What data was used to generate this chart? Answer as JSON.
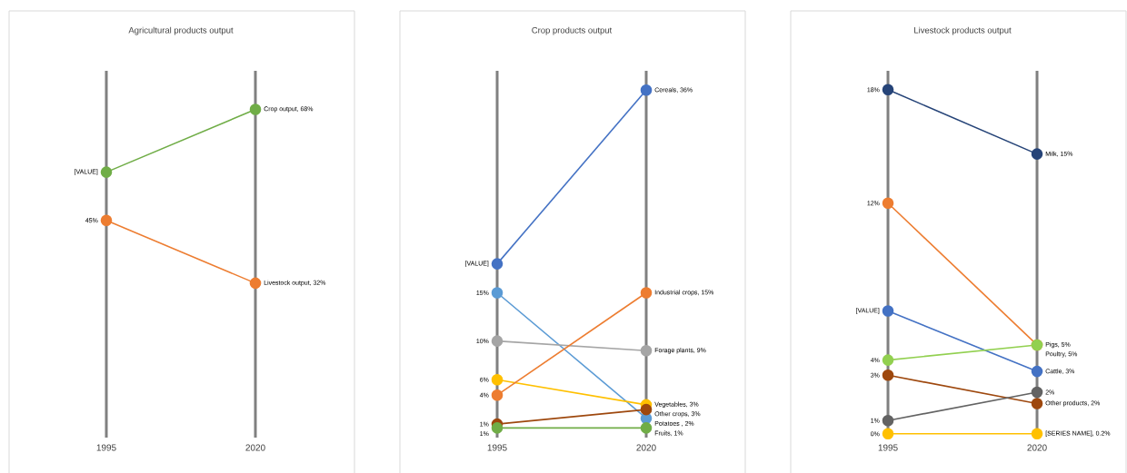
{
  "chart_data": [
    {
      "type": "line",
      "title": "Agricultural products output",
      "categories": [
        "1995",
        "2020"
      ],
      "ylim": [
        0,
        76
      ],
      "grid": "x",
      "tick_labels": "x",
      "marker": "circle",
      "series": [
        {
          "color": "#70ad47",
          "values": [
            55,
            68
          ],
          "value_labels": [
            "[VALUE]",
            "Crop output, 68%"
          ]
        },
        {
          "color": "#ed7d31",
          "values": [
            45,
            32
          ],
          "value_labels": [
            "45%",
            "Livestock output, 32%"
          ]
        }
      ]
    },
    {
      "type": "line",
      "title": "Crop products output",
      "categories": [
        "1995",
        "2020"
      ],
      "ylim": [
        0,
        38
      ],
      "grid": "x",
      "tick_labels": "x",
      "marker": "circle",
      "series": [
        {
          "color": "#4472c4",
          "values": [
            18,
            36
          ],
          "value_labels": [
            "[VALUE]",
            "Cereals, 36%"
          ]
        },
        {
          "color": "#5b9bd5",
          "values": [
            15,
            2
          ],
          "value_labels": [
            "15%",
            "Potatoes , 2%"
          ]
        },
        {
          "color": "#a5a5a5",
          "values": [
            10,
            9
          ],
          "value_labels": [
            "10%",
            "Forage plants, 9%"
          ]
        },
        {
          "color": "#ffc000",
          "values": [
            6,
            3.4
          ],
          "value_labels": [
            "6%",
            "Vegetables, 3%"
          ]
        },
        {
          "color": "#ed7d31",
          "values": [
            4.4,
            15
          ],
          "value_labels": [
            "4%",
            "Industrial crops, 15%"
          ]
        },
        {
          "color": "#9e480e",
          "values": [
            1.4,
            2.9
          ],
          "value_labels": [
            "1%",
            "Other crops, 3%"
          ]
        },
        {
          "color": "#70ad47",
          "values": [
            1,
            1
          ],
          "value_labels": [
            "1%",
            "Fruits, 1%"
          ]
        }
      ]
    },
    {
      "type": "line",
      "title": "Livestock products output",
      "categories": [
        "1995",
        "2020"
      ],
      "ylim": [
        0,
        19.4
      ],
      "grid": "x",
      "tick_labels": "x",
      "marker": "circle",
      "series": [
        {
          "color": "#264478",
          "values": [
            18.4,
            15
          ],
          "value_labels": [
            "18%",
            "Milk, 15%"
          ]
        },
        {
          "color": "#ed7d31",
          "values": [
            12.4,
            4.9
          ],
          "value_labels": [
            "12%",
            "Pigs, 5%"
          ]
        },
        {
          "color": "#4472c4",
          "values": [
            6.7,
            3.5
          ],
          "value_labels": [
            "[VALUE]",
            "Cattle, 3%"
          ]
        },
        {
          "color": "#92d050",
          "values": [
            4.1,
            4.9
          ],
          "value_labels": [
            "4%",
            "Poultry, 5%"
          ]
        },
        {
          "color": "#9e480e",
          "values": [
            3.3,
            1.8
          ],
          "value_labels": [
            "3%",
            "Other products, 2%"
          ]
        },
        {
          "color": "#636363",
          "values": [
            0.9,
            2.4
          ],
          "value_labels": [
            "1%",
            "2%"
          ]
        },
        {
          "color": "#ffc000",
          "values": [
            0.2,
            0.2
          ],
          "value_labels": [
            "0%",
            "[SERIES NAME], 0.2%"
          ]
        }
      ]
    }
  ]
}
